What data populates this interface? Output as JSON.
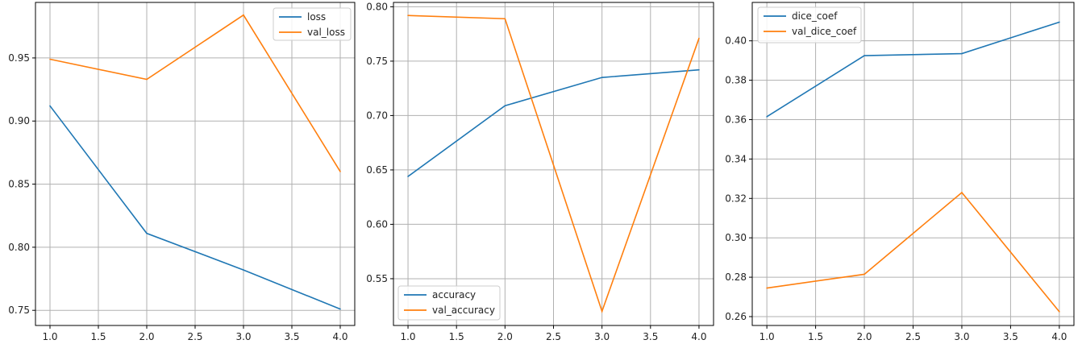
{
  "colors": {
    "blue": "#1f77b4",
    "orange": "#ff7f0e"
  },
  "chart_data": [
    {
      "type": "line",
      "xlim": [
        0.85,
        4.15
      ],
      "ylim": [
        0.738,
        0.994
      ],
      "xticks": [
        "1.0",
        "1.5",
        "2.0",
        "2.5",
        "3.0",
        "3.5",
        "4.0"
      ],
      "yticks": [
        "0.75",
        "0.80",
        "0.85",
        "0.90",
        "0.95"
      ],
      "grid": true,
      "legend_position": "top-right",
      "series": [
        {
          "name": "loss",
          "color": "#1f77b4",
          "x": [
            1,
            2,
            3,
            4
          ],
          "y": [
            0.912,
            0.811,
            0.782,
            0.751
          ]
        },
        {
          "name": "val_loss",
          "color": "#ff7f0e",
          "x": [
            1,
            2,
            3,
            4
          ],
          "y": [
            0.949,
            0.933,
            0.984,
            0.86
          ]
        }
      ]
    },
    {
      "type": "line",
      "xlim": [
        0.85,
        4.15
      ],
      "ylim": [
        0.507,
        0.804
      ],
      "xticks": [
        "1.0",
        "1.5",
        "2.0",
        "2.5",
        "3.0",
        "3.5",
        "4.0"
      ],
      "yticks": [
        "0.55",
        "0.60",
        "0.65",
        "0.70",
        "0.75",
        "0.80"
      ],
      "grid": true,
      "legend_position": "bottom-left",
      "series": [
        {
          "name": "accuracy",
          "color": "#1f77b4",
          "x": [
            1,
            2,
            3,
            4
          ],
          "y": [
            0.644,
            0.709,
            0.735,
            0.742
          ]
        },
        {
          "name": "val_accuracy",
          "color": "#ff7f0e",
          "x": [
            1,
            2,
            3,
            4
          ],
          "y": [
            0.792,
            0.789,
            0.52,
            0.771
          ]
        }
      ]
    },
    {
      "type": "line",
      "xlim": [
        0.85,
        4.15
      ],
      "ylim": [
        0.2555,
        0.4195
      ],
      "xticks": [
        "1.0",
        "1.5",
        "2.0",
        "2.5",
        "3.0",
        "3.5",
        "4.0"
      ],
      "yticks": [
        "0.26",
        "0.28",
        "0.30",
        "0.32",
        "0.34",
        "0.36",
        "0.38",
        "0.40"
      ],
      "grid": true,
      "legend_position": "top-left",
      "series": [
        {
          "name": "dice_coef",
          "color": "#1f77b4",
          "x": [
            1,
            2,
            3,
            4
          ],
          "y": [
            0.3615,
            0.3925,
            0.3935,
            0.4095
          ]
        },
        {
          "name": "val_dice_coef",
          "color": "#ff7f0e",
          "x": [
            1,
            2,
            3,
            4
          ],
          "y": [
            0.2745,
            0.2815,
            0.323,
            0.2625
          ]
        }
      ]
    }
  ]
}
